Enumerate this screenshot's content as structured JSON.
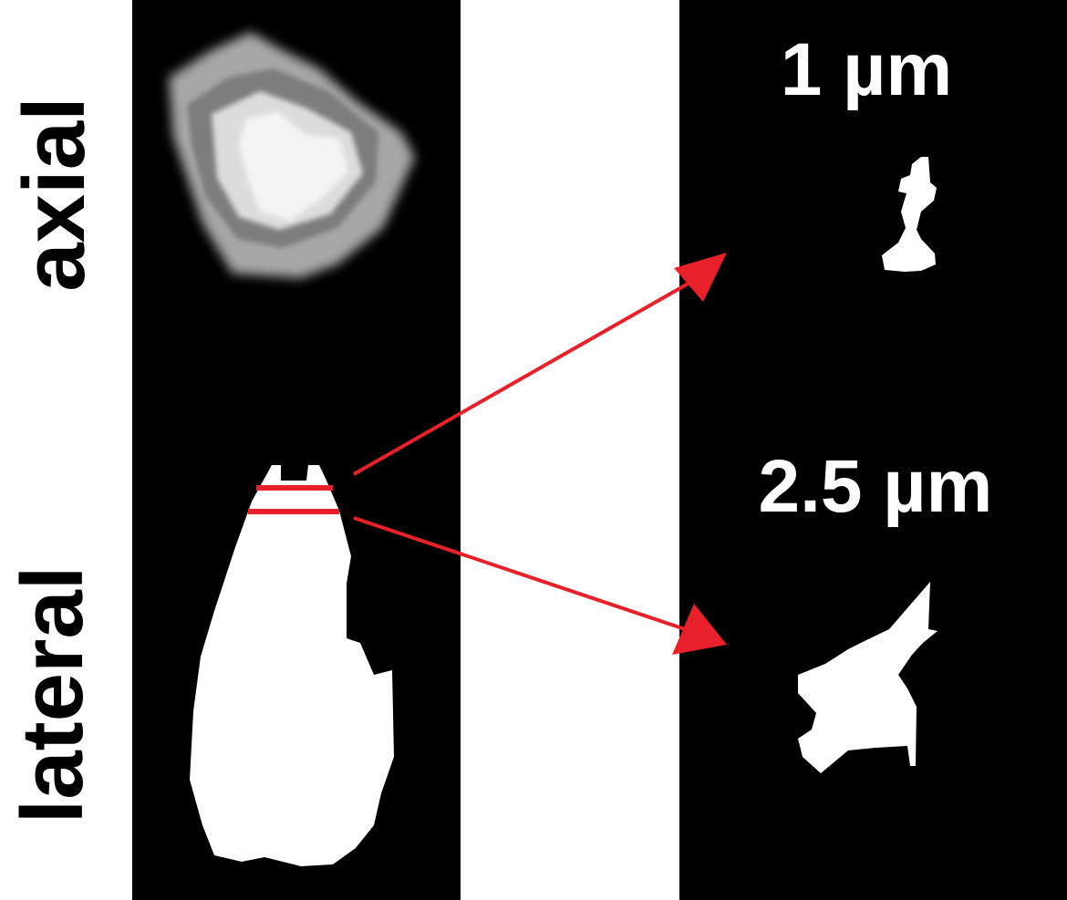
{
  "labels": {
    "axial": "axial",
    "lateral": "lateral"
  },
  "slices": {
    "top": "1 µm",
    "bottom": "2.5 µm"
  },
  "colors": {
    "background": "#ffffff",
    "panel": "#000000",
    "object": "#ffffff",
    "axial_object_outer": "#a9a9a9",
    "axial_object_inner": "#f0f0f0",
    "marker": "#e8202a"
  },
  "icons": {
    "arrow": "arrow-head-icon"
  }
}
